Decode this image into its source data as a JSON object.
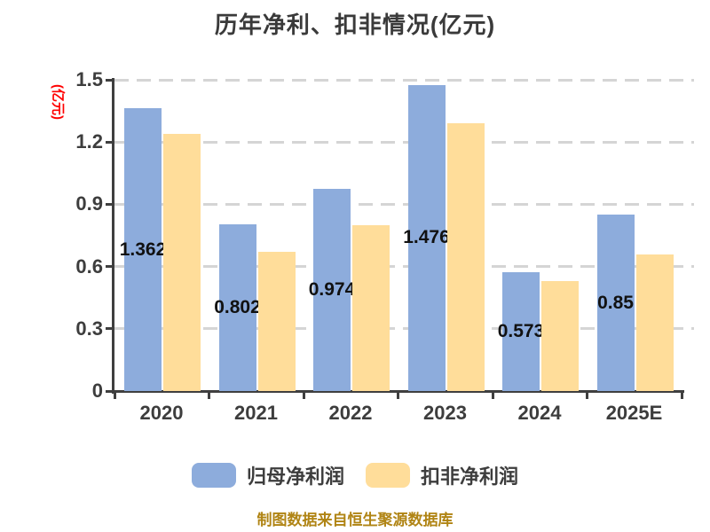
{
  "title": "历年净利、扣非情况(亿元)",
  "y_axis_label": "(亿元)",
  "footer": "制图数据来自恒生聚源数据库",
  "colors": {
    "series_blue": "#8DACDC",
    "series_yellow": "#FFDD9A",
    "grid": "#D5D5D5",
    "axis": "#3F3F3F",
    "tick_text": "#3D3D3D",
    "bar_label_text": "#111111",
    "y_axis_label_text": "#FF0000",
    "footer_text": "#B08414"
  },
  "legend": [
    {
      "label": "归母净利润",
      "color": "#8DACDC"
    },
    {
      "label": "扣非净利润",
      "color": "#FFDD9A"
    }
  ],
  "chart_data": {
    "type": "bar",
    "title": "历年净利、扣非情况(亿元)",
    "ylabel": "(亿元)",
    "categories": [
      "2020",
      "2021",
      "2022",
      "2023",
      "2024",
      "2025E"
    ],
    "series": [
      {
        "name": "归母净利润",
        "color": "#8DACDC",
        "values": [
          1.362,
          0.802,
          0.974,
          1.476,
          0.573,
          0.85
        ],
        "data_labels": [
          "1.362",
          "0.802",
          "0.974",
          "1.476",
          "0.573",
          "0.85"
        ]
      },
      {
        "name": "扣非净利润",
        "color": "#FFDD9A",
        "values": [
          1.24,
          0.67,
          0.8,
          1.29,
          0.53,
          0.66
        ],
        "data_labels": null
      }
    ],
    "ylim": [
      0,
      1.5
    ],
    "ytick_labels": [
      "0",
      "0.3",
      "0.6",
      "0.9",
      "1.2",
      "1.5"
    ],
    "grid": "horizontal-dashed",
    "legend_position": "bottom"
  }
}
